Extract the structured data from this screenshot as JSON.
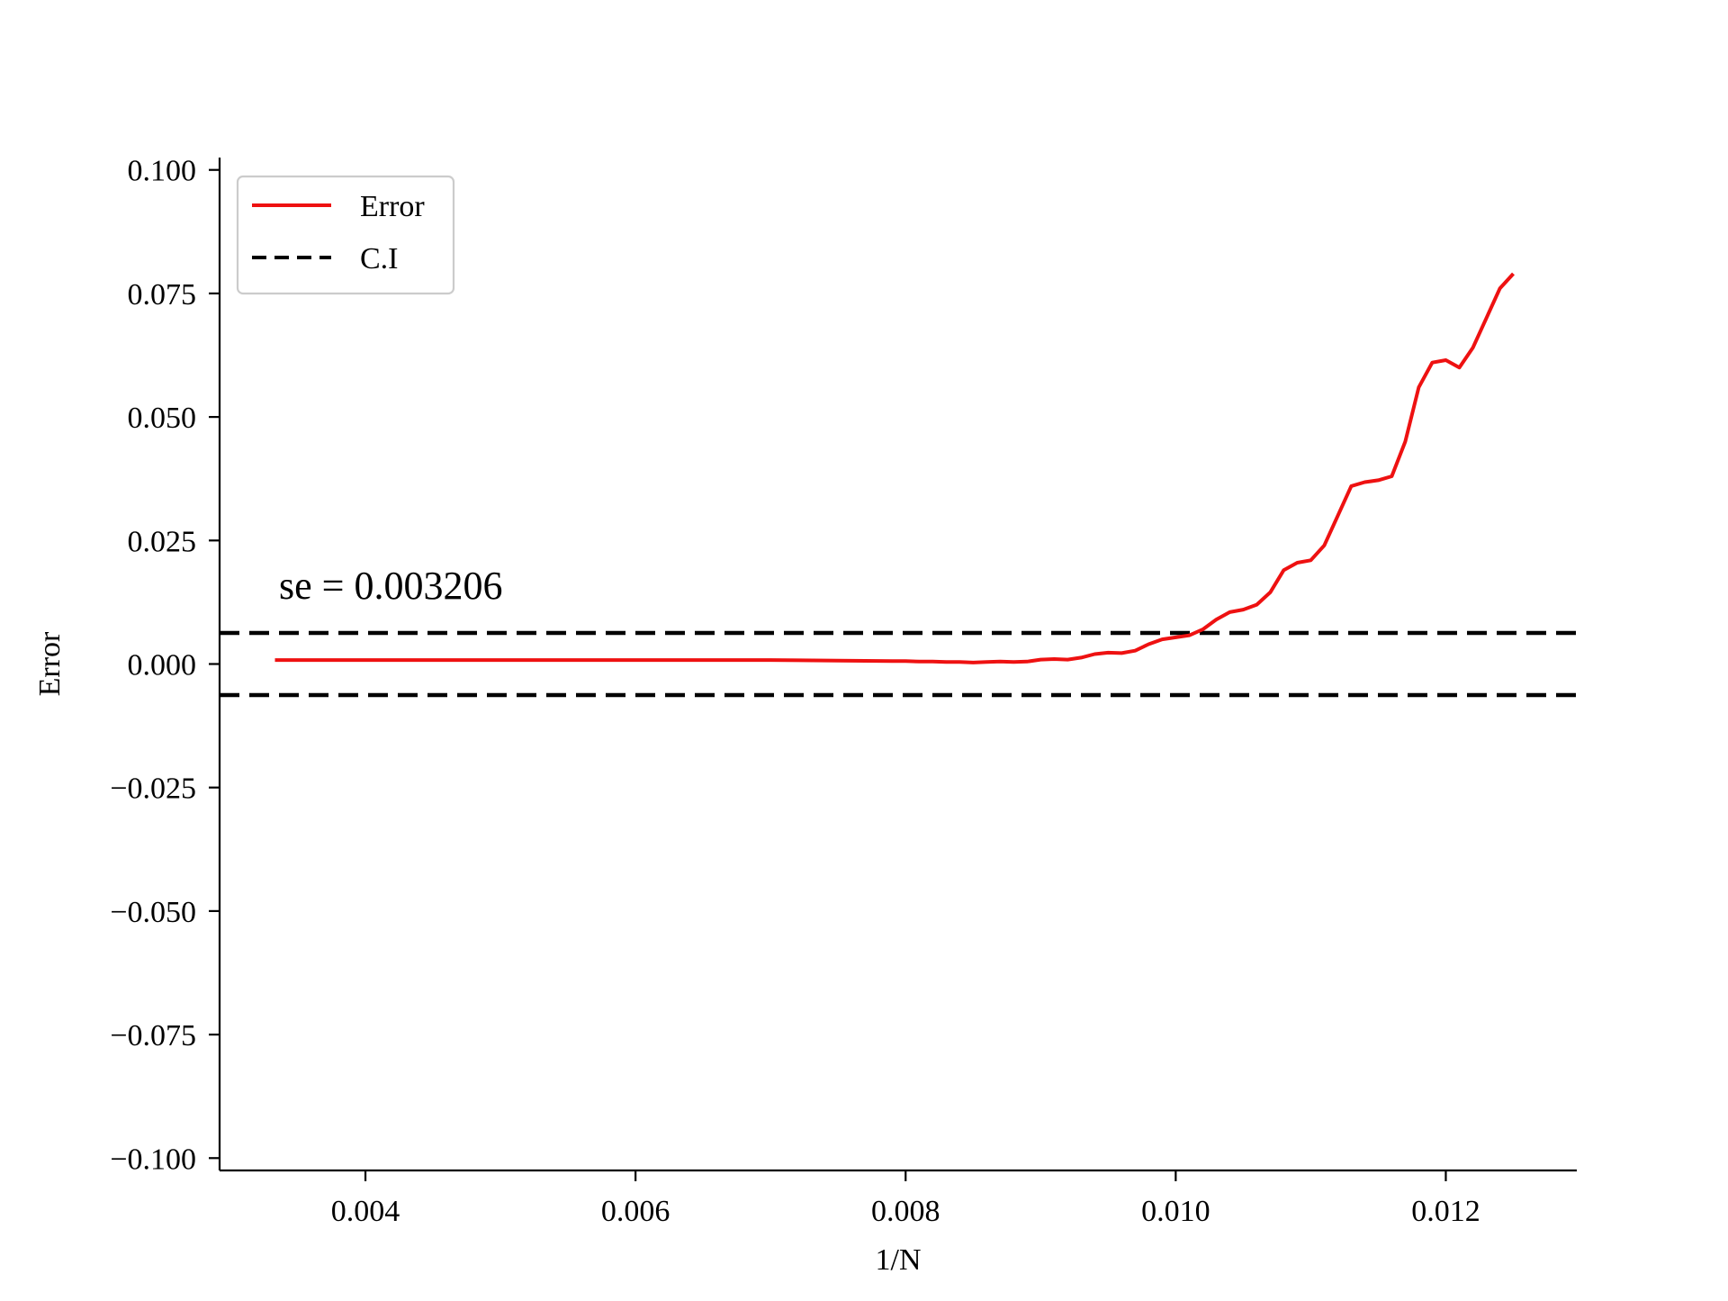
{
  "chart_data": {
    "type": "line",
    "title": "",
    "xlabel": "1/N",
    "ylabel": "Error",
    "xlim": [
      0.00292,
      0.01297
    ],
    "ylim": [
      -0.1025,
      0.1025
    ],
    "x_ticks": [
      0.004,
      0.006,
      0.008,
      0.01,
      0.012
    ],
    "x_tick_labels": [
      "0.004",
      "0.006",
      "0.008",
      "0.010",
      "0.012"
    ],
    "y_ticks": [
      0.1,
      0.075,
      0.05,
      0.025,
      0.0,
      -0.025,
      -0.05,
      -0.075,
      -0.1
    ],
    "y_tick_labels": [
      "0.100",
      "0.075",
      "0.050",
      "0.025",
      "0.000",
      "−0.025",
      "−0.050",
      "−0.075",
      "−0.100"
    ],
    "grid": false,
    "legend": {
      "placement": "top-left",
      "entries": [
        {
          "label": "Error",
          "color": "#ee1111",
          "style": "solid"
        },
        {
          "label": "C.I",
          "color": "#000000",
          "style": "dashed"
        }
      ]
    },
    "annotation": "se = 0.003206",
    "ci_bounds": [
      0.006284,
      -0.006284
    ],
    "series": [
      {
        "name": "Error",
        "color": "#ee1111",
        "x": [
          0.00333,
          0.0035,
          0.004,
          0.005,
          0.006,
          0.007,
          0.0075,
          0.0079,
          0.008,
          0.0081,
          0.0082,
          0.0083,
          0.0084,
          0.0085,
          0.0086,
          0.0087,
          0.0088,
          0.0089,
          0.009,
          0.0091,
          0.0092,
          0.0093,
          0.0094,
          0.0095,
          0.0096,
          0.0097,
          0.0098,
          0.0099,
          0.01,
          0.0101,
          0.0102,
          0.0103,
          0.0104,
          0.0105,
          0.0106,
          0.0107,
          0.0108,
          0.0109,
          0.011,
          0.0111,
          0.0112,
          0.0113,
          0.0114,
          0.0115,
          0.0116,
          0.0117,
          0.0118,
          0.0119,
          0.012,
          0.0121,
          0.0122,
          0.0123,
          0.0124,
          0.0125
        ],
        "values": [
          0.0008,
          0.0008,
          0.0008,
          0.0008,
          0.0008,
          0.0008,
          0.0007,
          0.0006,
          0.0006,
          0.0005,
          0.0005,
          0.0004,
          0.0004,
          0.0003,
          0.0004,
          0.0005,
          0.0004,
          0.0005,
          0.0009,
          0.001,
          0.0009,
          0.0013,
          0.002,
          0.0023,
          0.0022,
          0.0027,
          0.004,
          0.005,
          0.0054,
          0.0058,
          0.007,
          0.009,
          0.0105,
          0.011,
          0.012,
          0.0145,
          0.019,
          0.0205,
          0.021,
          0.024,
          0.03,
          0.036,
          0.0368,
          0.0372,
          0.038,
          0.045,
          0.056,
          0.061,
          0.0615,
          0.06,
          0.064,
          0.07,
          0.076,
          0.079
        ]
      }
    ]
  }
}
